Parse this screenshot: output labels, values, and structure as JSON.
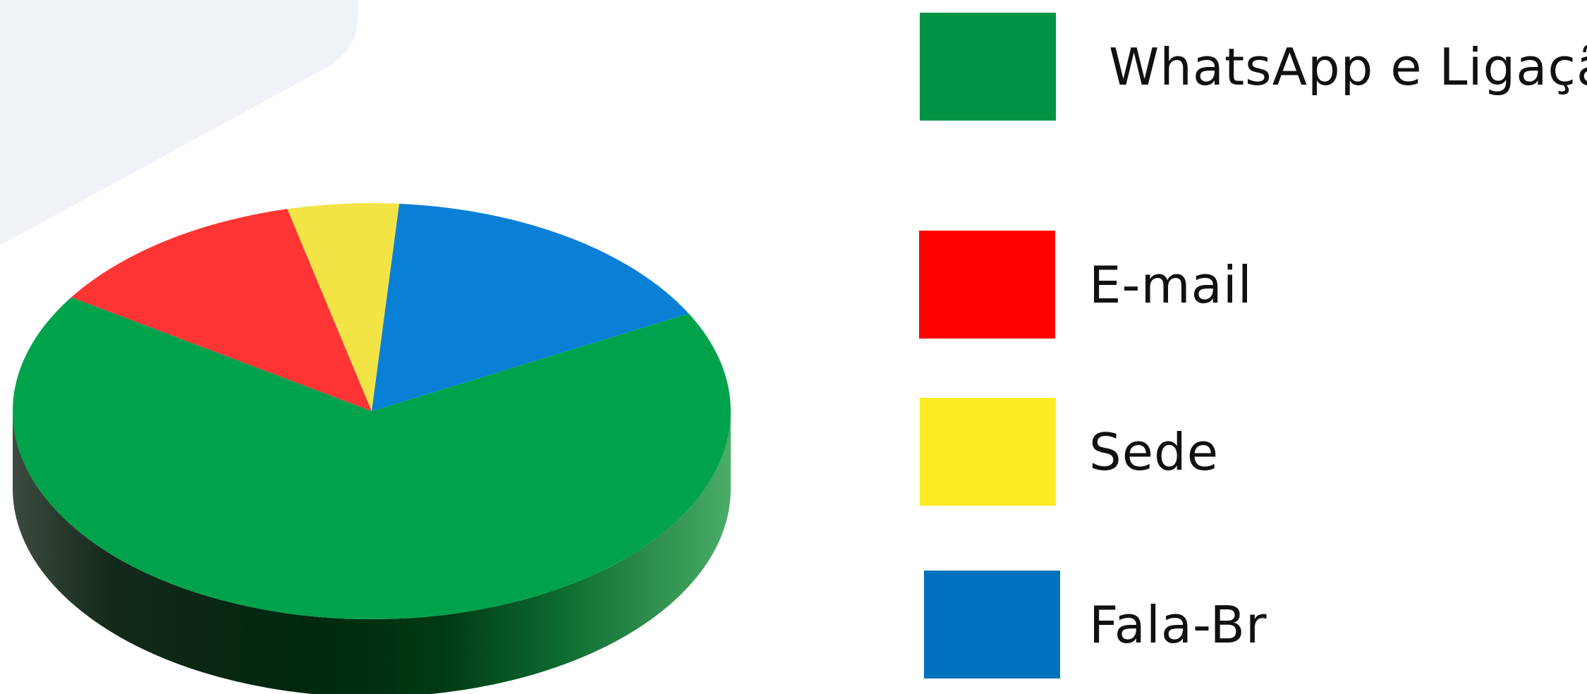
{
  "chart_data": {
    "type": "pie",
    "style": "3d",
    "categories": [
      "WhatsApp e Ligação",
      "E-mail",
      "Sede",
      "Fala-Br"
    ],
    "values": [
      67,
      12,
      5,
      16
    ],
    "value_unit": "percent (estimated from slice angles, no data labels shown)",
    "colors": [
      "#00a34c",
      "#ff3535",
      "#f2e445",
      "#0a7fd6"
    ],
    "legend_colors": [
      "#009346",
      "#ff0000",
      "#fced22",
      "#0072bd"
    ],
    "legend": {
      "placement": "right",
      "items": [
        "WhatsApp e Ligação",
        "E-mail",
        "Sede",
        "Fala-Br"
      ]
    },
    "title": "",
    "xlabel": "",
    "ylabel": ""
  }
}
